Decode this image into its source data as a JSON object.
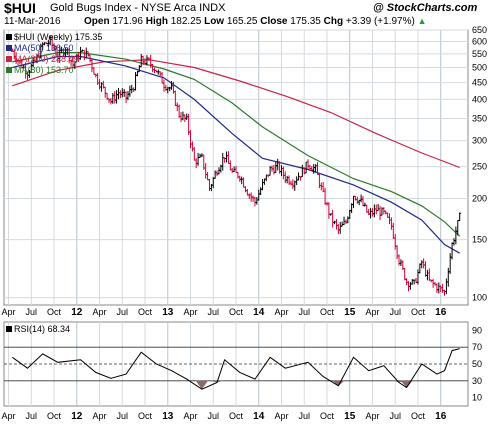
{
  "header": {
    "symbol": "$HUI",
    "name": "Gold Bugs Index - NYSE Arca  INDX",
    "source": "@ StockCharts.com",
    "date": "11-Mar-2016",
    "open_label": "Open",
    "open": "171.96",
    "high_label": "High",
    "high": "182.25",
    "low_label": "Low",
    "low": "165.25",
    "close_label": "Close",
    "close": "175.35",
    "chg_label": "Chg",
    "chg": "+3.39 (+1.97%)",
    "chg_arrow": "▲"
  },
  "colors": {
    "price": "#000000",
    "down_bar": "#cc0033",
    "ma50": "#1f2a8a",
    "ma200": "#cc2244",
    "ma80": "#2a7a2a",
    "grid": "#d4dbe0",
    "rsi_fill": "#8a6a6a"
  },
  "chart_data": [
    {
      "type": "ohlc",
      "legend": [
        {
          "label": "$HUI (Weekly) 175.35",
          "color": "#000000"
        },
        {
          "label": "MA(50) 136.50",
          "color": "#1f2a8a"
        },
        {
          "label": "MA(200) 248.49",
          "color": "#cc2244"
        },
        {
          "label": "MA(80) 153.70",
          "color": "#2a7a2a"
        }
      ],
      "y_scale": "log",
      "ylim": [
        95,
        650
      ],
      "y_ticks": [
        650,
        600,
        550,
        500,
        450,
        400,
        350,
        300,
        250,
        200,
        150,
        100
      ],
      "x_ticks": [
        "Apr",
        "Jul",
        "Oct",
        "12",
        "Apr",
        "Jul",
        "Oct",
        "13",
        "Apr",
        "Jul",
        "Oct",
        "14",
        "Apr",
        "Jul",
        "Oct",
        "15",
        "Apr",
        "Jul",
        "Oct",
        "16"
      ],
      "x_ticks_year": [
        "12",
        "13",
        "14",
        "15",
        "16"
      ],
      "close_series": [
        {
          "date": "2011-04",
          "close": 560
        },
        {
          "date": "2011-05",
          "close": 515
        },
        {
          "date": "2011-06",
          "close": 485
        },
        {
          "date": "2011-07",
          "close": 520
        },
        {
          "date": "2011-08",
          "close": 585
        },
        {
          "date": "2011-09",
          "close": 600
        },
        {
          "date": "2011-10",
          "close": 540
        },
        {
          "date": "2011-11",
          "close": 575
        },
        {
          "date": "2011-12",
          "close": 510
        },
        {
          "date": "2012-01",
          "close": 555
        },
        {
          "date": "2012-02",
          "close": 545
        },
        {
          "date": "2012-03",
          "close": 470
        },
        {
          "date": "2012-04",
          "close": 430
        },
        {
          "date": "2012-05",
          "close": 395
        },
        {
          "date": "2012-06",
          "close": 420
        },
        {
          "date": "2012-07",
          "close": 405
        },
        {
          "date": "2012-08",
          "close": 440
        },
        {
          "date": "2012-09",
          "close": 525
        },
        {
          "date": "2012-10",
          "close": 520
        },
        {
          "date": "2012-11",
          "close": 490
        },
        {
          "date": "2012-12",
          "close": 445
        },
        {
          "date": "2013-01",
          "close": 430
        },
        {
          "date": "2013-02",
          "close": 360
        },
        {
          "date": "2013-03",
          "close": 345
        },
        {
          "date": "2013-04",
          "close": 260
        },
        {
          "date": "2013-05",
          "close": 265
        },
        {
          "date": "2013-06",
          "close": 215
        },
        {
          "date": "2013-07",
          "close": 245
        },
        {
          "date": "2013-08",
          "close": 270
        },
        {
          "date": "2013-09",
          "close": 240
        },
        {
          "date": "2013-10",
          "close": 235
        },
        {
          "date": "2013-11",
          "close": 210
        },
        {
          "date": "2013-12",
          "close": 195
        },
        {
          "date": "2014-01",
          "close": 220
        },
        {
          "date": "2014-02",
          "close": 245
        },
        {
          "date": "2014-03",
          "close": 250
        },
        {
          "date": "2014-04",
          "close": 232
        },
        {
          "date": "2014-05",
          "close": 225
        },
        {
          "date": "2014-06",
          "close": 238
        },
        {
          "date": "2014-07",
          "close": 255
        },
        {
          "date": "2014-08",
          "close": 245
        },
        {
          "date": "2014-09",
          "close": 205
        },
        {
          "date": "2014-10",
          "close": 175
        },
        {
          "date": "2014-11",
          "close": 160
        },
        {
          "date": "2014-12",
          "close": 170
        },
        {
          "date": "2015-01",
          "close": 205
        },
        {
          "date": "2015-02",
          "close": 195
        },
        {
          "date": "2015-03",
          "close": 178
        },
        {
          "date": "2015-04",
          "close": 185
        },
        {
          "date": "2015-05",
          "close": 180
        },
        {
          "date": "2015-06",
          "close": 165
        },
        {
          "date": "2015-07",
          "close": 130
        },
        {
          "date": "2015-08",
          "close": 112
        },
        {
          "date": "2015-09",
          "close": 110
        },
        {
          "date": "2015-10",
          "close": 128
        },
        {
          "date": "2015-11",
          "close": 112
        },
        {
          "date": "2015-12",
          "close": 108
        },
        {
          "date": "2016-01",
          "close": 104
        },
        {
          "date": "2016-02",
          "close": 145
        },
        {
          "date": "2016-03",
          "close": 175.35
        }
      ],
      "ma50": [
        {
          "date": "2011-04",
          "value": 500
        },
        {
          "date": "2011-10",
          "value": 540
        },
        {
          "date": "2012-01",
          "value": 540
        },
        {
          "date": "2012-07",
          "value": 505
        },
        {
          "date": "2012-12",
          "value": 465
        },
        {
          "date": "2013-04",
          "value": 400
        },
        {
          "date": "2013-09",
          "value": 315
        },
        {
          "date": "2014-01",
          "value": 265
        },
        {
          "date": "2014-07",
          "value": 245
        },
        {
          "date": "2015-01",
          "value": 220
        },
        {
          "date": "2015-06",
          "value": 195
        },
        {
          "date": "2015-10",
          "value": 172
        },
        {
          "date": "2016-01",
          "value": 145
        },
        {
          "date": "2016-03",
          "value": 136.5
        }
      ],
      "ma80": [
        {
          "date": "2011-04",
          "value": 520
        },
        {
          "date": "2011-10",
          "value": 555
        },
        {
          "date": "2012-01",
          "value": 555
        },
        {
          "date": "2012-07",
          "value": 530
        },
        {
          "date": "2012-12",
          "value": 495
        },
        {
          "date": "2013-04",
          "value": 460
        },
        {
          "date": "2013-09",
          "value": 390
        },
        {
          "date": "2014-01",
          "value": 330
        },
        {
          "date": "2014-07",
          "value": 270
        },
        {
          "date": "2015-01",
          "value": 230
        },
        {
          "date": "2015-06",
          "value": 210
        },
        {
          "date": "2015-10",
          "value": 190
        },
        {
          "date": "2016-01",
          "value": 170
        },
        {
          "date": "2016-03",
          "value": 153.7
        }
      ],
      "ma200": [
        {
          "date": "2011-04",
          "value": 440
        },
        {
          "date": "2011-10",
          "value": 490
        },
        {
          "date": "2012-04",
          "value": 520
        },
        {
          "date": "2012-10",
          "value": 528
        },
        {
          "date": "2013-04",
          "value": 500
        },
        {
          "date": "2013-10",
          "value": 455
        },
        {
          "date": "2014-04",
          "value": 410
        },
        {
          "date": "2014-10",
          "value": 365
        },
        {
          "date": "2015-04",
          "value": 315
        },
        {
          "date": "2015-10",
          "value": 275
        },
        {
          "date": "2016-03",
          "value": 248.49
        }
      ]
    },
    {
      "type": "line",
      "legend": [
        {
          "label": "RSI(14) 68.34",
          "color": "#000000"
        }
      ],
      "ylim": [
        0,
        100
      ],
      "y_ticks": [
        90,
        70,
        50,
        30,
        10
      ],
      "reference_lines": [
        70,
        50,
        30
      ],
      "rsi": [
        {
          "date": "2011-04",
          "value": 58
        },
        {
          "date": "2011-06",
          "value": 45
        },
        {
          "date": "2011-08",
          "value": 62
        },
        {
          "date": "2011-10",
          "value": 52
        },
        {
          "date": "2012-01",
          "value": 55
        },
        {
          "date": "2012-03",
          "value": 40
        },
        {
          "date": "2012-05",
          "value": 33
        },
        {
          "date": "2012-07",
          "value": 38
        },
        {
          "date": "2012-09",
          "value": 64
        },
        {
          "date": "2012-11",
          "value": 50
        },
        {
          "date": "2013-01",
          "value": 42
        },
        {
          "date": "2013-03",
          "value": 32
        },
        {
          "date": "2013-05",
          "value": 20
        },
        {
          "date": "2013-07",
          "value": 28
        },
        {
          "date": "2013-08",
          "value": 55
        },
        {
          "date": "2013-10",
          "value": 40
        },
        {
          "date": "2013-12",
          "value": 32
        },
        {
          "date": "2014-02",
          "value": 58
        },
        {
          "date": "2014-04",
          "value": 45
        },
        {
          "date": "2014-07",
          "value": 52
        },
        {
          "date": "2014-09",
          "value": 35
        },
        {
          "date": "2014-11",
          "value": 24
        },
        {
          "date": "2015-01",
          "value": 58
        },
        {
          "date": "2015-03",
          "value": 42
        },
        {
          "date": "2015-05",
          "value": 48
        },
        {
          "date": "2015-07",
          "value": 28
        },
        {
          "date": "2015-08",
          "value": 22
        },
        {
          "date": "2015-10",
          "value": 50
        },
        {
          "date": "2015-12",
          "value": 38
        },
        {
          "date": "2016-01",
          "value": 42
        },
        {
          "date": "2016-02",
          "value": 66
        },
        {
          "date": "2016-03",
          "value": 68.34
        }
      ]
    }
  ]
}
